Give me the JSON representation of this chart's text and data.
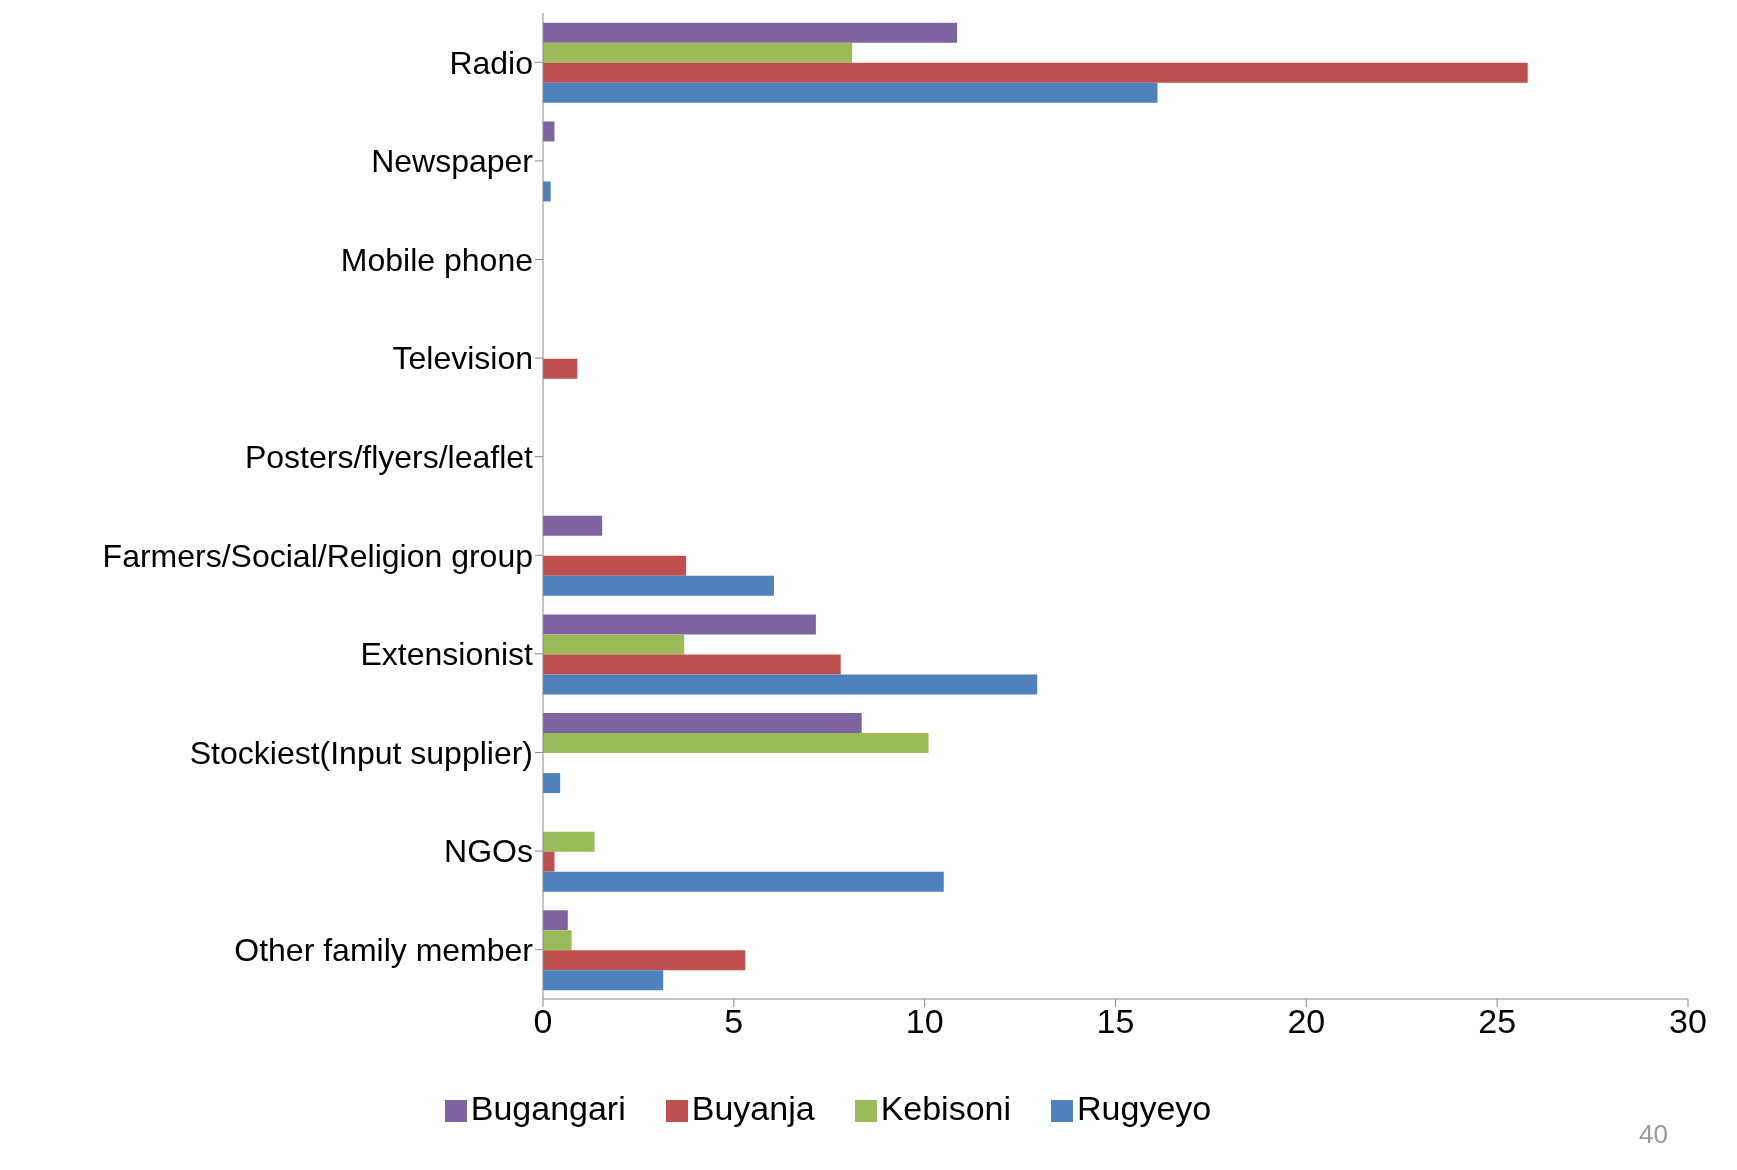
{
  "chart_data": {
    "type": "bar",
    "orientation": "horizontal",
    "categories": [
      "Radio",
      "Newspaper",
      "Mobile phone",
      "Television",
      "Posters/flyers/leaflet",
      "Farmers/Social/Religion group",
      "Extensionist",
      "Stockiest(Input supplier)",
      "NGOs",
      "Other family member"
    ],
    "series": [
      {
        "name": "Bugangari",
        "color": "#8064a2",
        "values": [
          10.85,
          0.3,
          0,
          0,
          0,
          1.55,
          7.15,
          8.35,
          0,
          0.65
        ]
      },
      {
        "name": "Kebisoni",
        "color": "#9bbb59",
        "values": [
          8.1,
          0,
          0,
          0,
          0,
          0,
          3.7,
          10.1,
          1.35,
          0.75
        ]
      },
      {
        "name": "Buyanja",
        "color": "#c0504d",
        "values": [
          25.8,
          0,
          0,
          0.9,
          0,
          3.75,
          7.8,
          0,
          0.3,
          5.3
        ]
      },
      {
        "name": "Rugyeyo",
        "color": "#4f81bd",
        "values": [
          16.1,
          0.2,
          0,
          0,
          0,
          6.05,
          12.95,
          0.45,
          10.5,
          3.15
        ]
      }
    ],
    "xlim": [
      0,
      30
    ],
    "xticks": [
      0,
      5,
      10,
      15,
      20,
      25,
      30
    ],
    "grid": false,
    "legend": "bottom",
    "annotations": [
      "40"
    ]
  }
}
